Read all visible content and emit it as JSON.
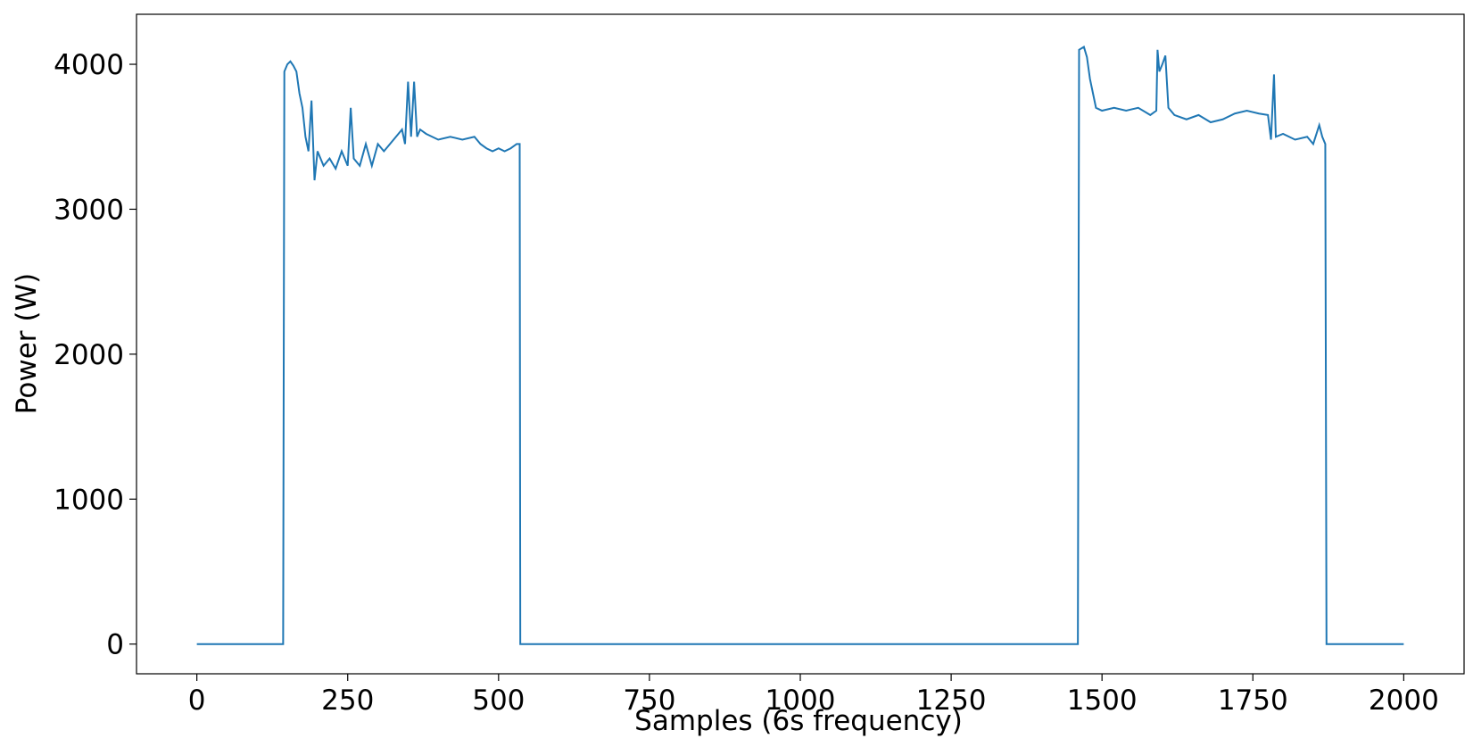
{
  "chart_data": {
    "type": "line",
    "x_label": "Samples (6s frequency)",
    "y_label": "Power (W)",
    "x": [
      0,
      143,
      145,
      150,
      155,
      160,
      165,
      170,
      175,
      180,
      185,
      190,
      195,
      200,
      210,
      220,
      230,
      240,
      250,
      255,
      260,
      270,
      280,
      290,
      300,
      310,
      320,
      330,
      340,
      345,
      350,
      355,
      360,
      365,
      370,
      380,
      400,
      420,
      440,
      460,
      470,
      480,
      490,
      500,
      510,
      520,
      530,
      535,
      536,
      1460,
      1462,
      1470,
      1475,
      1480,
      1490,
      1500,
      1520,
      1540,
      1560,
      1580,
      1590,
      1592,
      1595,
      1600,
      1605,
      1610,
      1620,
      1640,
      1660,
      1680,
      1700,
      1720,
      1740,
      1760,
      1775,
      1780,
      1785,
      1788,
      1800,
      1820,
      1840,
      1850,
      1860,
      1865,
      1870,
      1872,
      2000
    ],
    "series": [
      {
        "color": "#1f77b4",
        "values": [
          0,
          0,
          3950,
          4000,
          4020,
          3990,
          3950,
          3800,
          3700,
          3500,
          3400,
          3750,
          3200,
          3400,
          3300,
          3350,
          3280,
          3400,
          3300,
          3700,
          3350,
          3300,
          3450,
          3300,
          3450,
          3400,
          3450,
          3500,
          3550,
          3450,
          3880,
          3500,
          3880,
          3500,
          3550,
          3520,
          3480,
          3500,
          3480,
          3500,
          3450,
          3420,
          3400,
          3420,
          3400,
          3420,
          3450,
          3450,
          0,
          0,
          4100,
          4120,
          4050,
          3900,
          3700,
          3680,
          3700,
          3680,
          3700,
          3650,
          3680,
          4100,
          3950,
          4000,
          4060,
          3700,
          3650,
          3620,
          3650,
          3600,
          3620,
          3660,
          3680,
          3660,
          3650,
          3480,
          3930,
          3500,
          3520,
          3480,
          3500,
          3450,
          3580,
          3500,
          3450,
          0,
          0
        ]
      }
    ],
    "xlim": [
      -100,
      2100
    ],
    "ylim": [
      -205,
      4345
    ],
    "xticks": [
      0,
      250,
      500,
      750,
      1000,
      1250,
      1500,
      1750,
      2000
    ],
    "yticks": [
      0,
      1000,
      2000,
      3000,
      4000
    ]
  }
}
